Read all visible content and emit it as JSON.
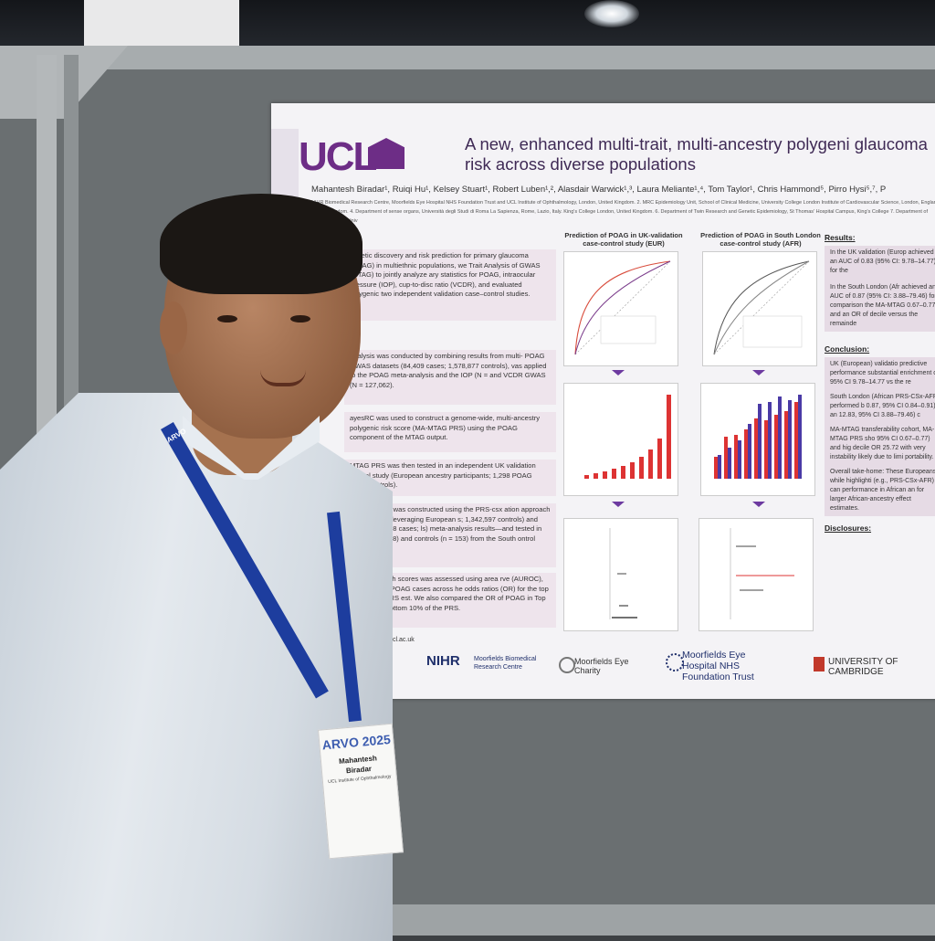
{
  "poster": {
    "logo": "UCL",
    "title": "A new, enhanced multi-trait, multi-ancestry polygeni glaucoma risk across diverse populations",
    "authors": "Mahantesh Biradar¹, Ruiqi Hu¹, Kelsey Stuart¹, Robert Luben¹,², Alasdair Warwick¹,³, Laura Meliante¹,⁴, Tom Taylor¹, Chris Hammond⁵, Pirro Hysi⁵,⁷, P",
    "affiliations": "NIHR Biomedical Research Centre, Moorfields Eye Hospital NHS Foundation Trust and UCL Institute of Ophthalmology, London, United Kingdom. 2. MRC Epidemiology Unit, School of Clinical Medicine, University College London Institute of Cardiovascular Science, London, England, United Kingdom. 4. Department of sense organs, Università degli Studi di Roma La Sapienza, Rome, Lazio, Italy. King's College London, United Kingdom. 6. Department of Twin Research and Genetic Epidemiology, St Thomas' Hospital Campus, King's College 7. Department of Ophthalmology, Univ",
    "intro": "genetic discovery and risk prediction for primary glaucoma (POAG) in multiethnic populations, we Trait Analysis of GWAS (MTAG) to jointly analyze ary statistics for POAG, intraocular pressure (IOP), cup-to-disc ratio (VCDR), and evaluated polygenic two independent validation case–control studies.",
    "methods1": "analysis was conducted by combining results from multi- POAG GWAS datasets (84,409 cases; 1,578,877 controls), vas applied to the POAG meta-analysis and the IOP (N = and VCDR GWAS (N = 127,062).",
    "methods2": "ayesRC was used to construct a genome-wide, multi-ancestry polygenic risk score (MA-MTAG PRS) using the POAG component of the MTAG output.",
    "methods3": "MTAG PRS was then tested in an independent UK validation control study (European ancestry participants; 1,298 POAG 4,105 controls).",
    "methods4": "-specific PRS was constructed using the PRS-csx ation approach (PRS-AFR)—leveraging European s; 1,342,597 controls) and African (16,988 cases; ls) meta-analysis results—and tested in African n = 318) and controls (n = 153) from the South ontrol study.",
    "methods5": "mance for both scores was assessed using area rve (AUROC), proportion of POAG cases across he odds ratios (OR) for the top 10% of the PRS est. We also compared the OR of POAG in Top top 10% vs bottom 10% of the PRS.",
    "chart1_title": "Prediction of POAG in UK-validation case-control study (EUR)",
    "chart2_title": "Prediction of POAG in South London case-control study (AFR)",
    "results_heading": "Results:",
    "result1": "In the UK validation (Europ achieved an AUC of 0.83 (95% CI: 9.78–14.77) for the",
    "result2": "In the South London (Afr achieved an AUC of 0.87 (95% CI: 3.88–79.46) for comparison the MA-MTAG 0.67–0.77) and an OR of decile versus the remainde",
    "conclusion_heading": "Conclusion:",
    "conc1": "UK (European) validatio predictive performance substantial enrichment of 95% CI 9.78–14.77 vs the re",
    "conc2": "South London (African PRS-CSx-AFR performed b 0.87, 95% CI 0.84–0.91) an 12.83, 95% CI 3.88–79.46) c",
    "conc3": "MA-MTAG transferability cohort, MA-MTAG PRS sho 95% CI 0.67–0.77) and hig decile OR 25.72 with very instability likely due to limi portability.",
    "conc4": "Overall take-home: These Europeans, while highlighti (e.g., PRS-CSx-AFR) can performance in African an for larger African-ancestry effect estimates.",
    "disclosures_heading": "Disclosures:",
    "email": "@ucl.ac.uk",
    "logo_nihr": "NIHR",
    "logo_nihr_sub": "Moorfields Biomedical Research Centre",
    "logo_charity": "Moorfields Eye Charity",
    "logo_meh": "Moorfields Eye Hospital NHS Foundation Trust",
    "logo_cam": "UNIVERSITY OF CAMBRIDGE"
  },
  "badge": {
    "event": "ARVO 2025",
    "name_first": "Mahantesh",
    "name_last": "Biradar",
    "institution": "UCL Institute of Ophthalmology"
  },
  "lanyard": {
    "text": "ARVO"
  }
}
